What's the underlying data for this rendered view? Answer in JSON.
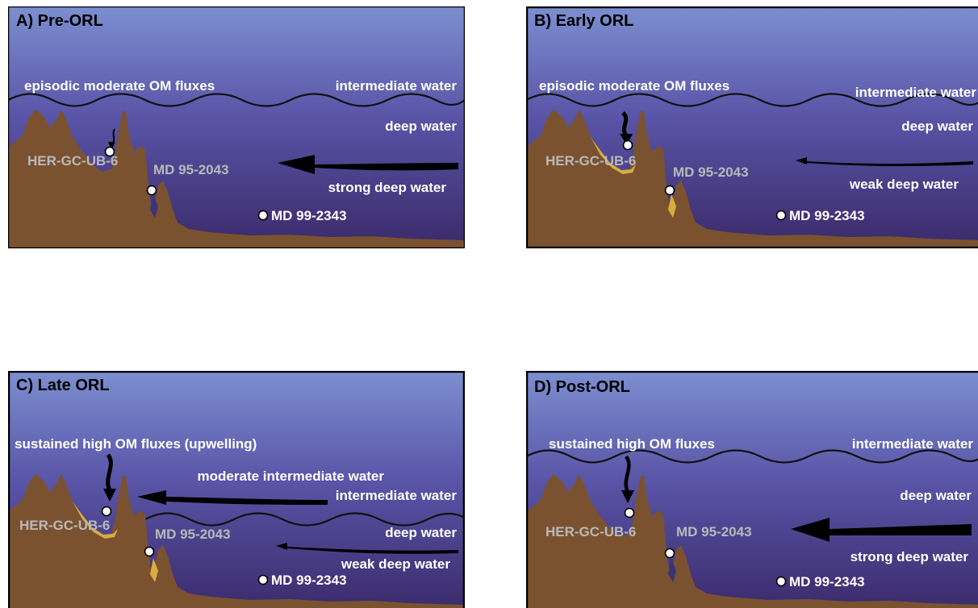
{
  "colors": {
    "water_top": "#7c8fd0",
    "water_bottom": "#3a2a6a",
    "seafloor": "#7b5230",
    "sediment": "#d8ad3e",
    "site_label": "#b9b9b9"
  },
  "panels": [
    {
      "title": "A) Pre-ORL",
      "om_flux": "episodic moderate OM fluxes",
      "intermediate": "intermediate water",
      "deep": "deep water",
      "flow": "strong deep water",
      "sites": {
        "her": "HER-GC-UB-6",
        "md95": "MD 95-2043",
        "md99": "MD 99-2343"
      }
    },
    {
      "title": "B) Early ORL",
      "om_flux": "episodic moderate OM fluxes",
      "intermediate": "intermediate water",
      "deep": "deep water",
      "flow": "weak deep water",
      "sites": {
        "her": "HER-GC-UB-6",
        "md95": "MD 95-2043",
        "md99": "MD 99-2343"
      }
    },
    {
      "title": "C) Late ORL",
      "om_flux": "sustained high OM fluxes (upwelling)",
      "moderate": "moderate intermediate water",
      "intermediate": "intermediate water",
      "deep": "deep water",
      "flow": "weak deep water",
      "sites": {
        "her": "HER-GC-UB-6",
        "md95": "MD 95-2043",
        "md99": "MD 99-2343"
      }
    },
    {
      "title": "D) Post-ORL",
      "om_flux": "sustained high OM fluxes",
      "intermediate": "intermediate water",
      "deep": "deep water",
      "flow": "strong deep water",
      "sites": {
        "her": "HER-GC-UB-6",
        "md95": "MD 95-2043",
        "md99": "MD 99-2343"
      }
    }
  ]
}
